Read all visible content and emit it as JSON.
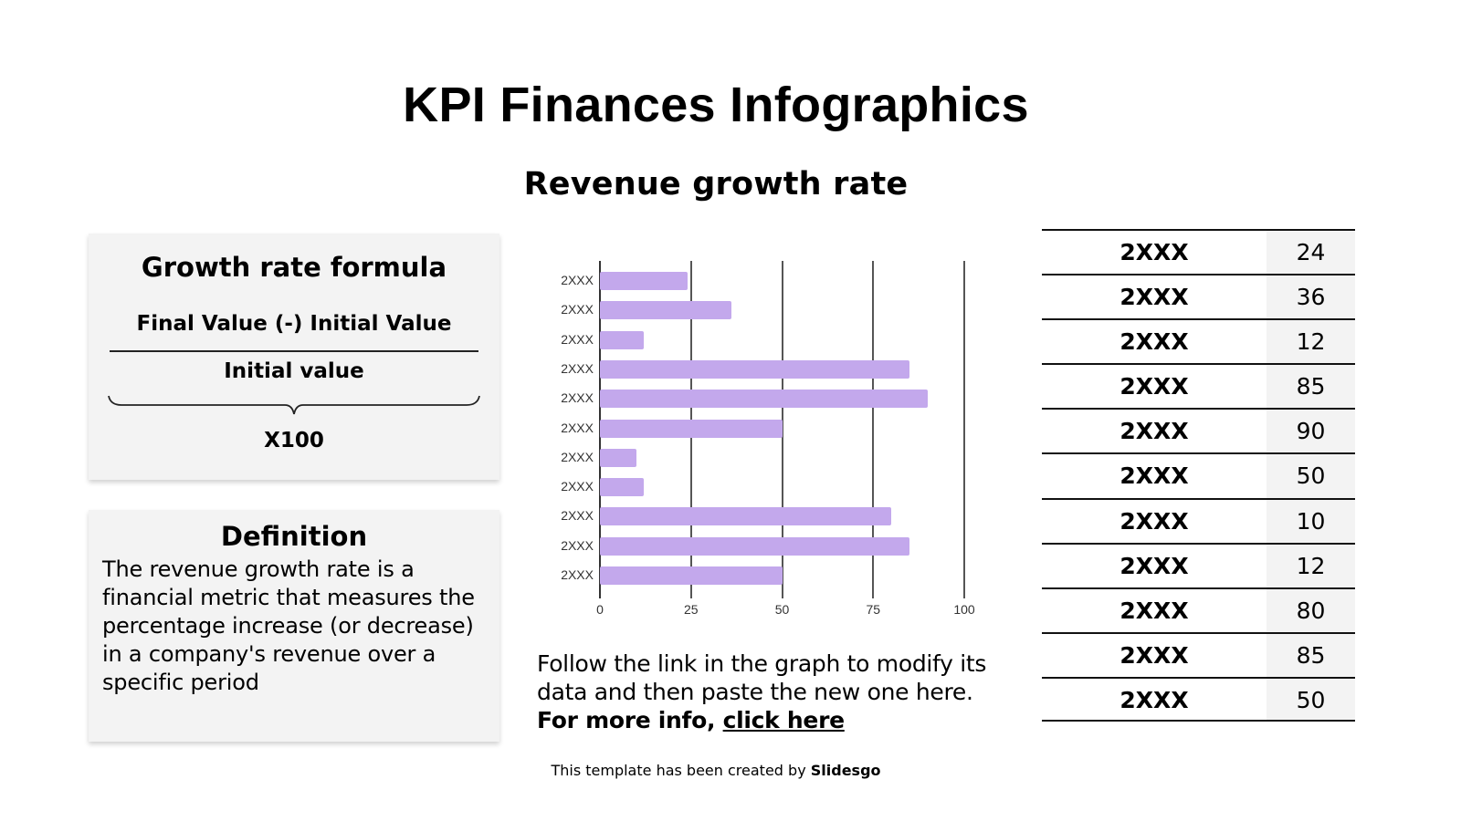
{
  "header": {
    "title": "KPI Finances Infographics",
    "subtitle": "Revenue growth rate"
  },
  "formula_card": {
    "heading": "Growth rate formula",
    "numerator": "Final Value (-) Initial Value",
    "denominator": "Initial value",
    "multiplier": "X100"
  },
  "definition_card": {
    "heading": "Definition",
    "text": "The revenue growth rate is a financial metric that measures the percentage increase (or decrease) in a company's revenue over a specific period"
  },
  "note": {
    "text": "Follow the link in the graph to modify its data and then paste the new one here. ",
    "bold": "For more info, ",
    "link": "click here"
  },
  "credit": {
    "text": "This template has been created by ",
    "brand": "Slidesgo"
  },
  "colors": {
    "bar": "#c3a8ec",
    "card_bg": "#f3f3f3",
    "value_col_bg": "#f3f3f3"
  },
  "table": {
    "rows": [
      {
        "label": "2XXX",
        "value": "24"
      },
      {
        "label": "2XXX",
        "value": "36"
      },
      {
        "label": "2XXX",
        "value": "12"
      },
      {
        "label": "2XXX",
        "value": "85"
      },
      {
        "label": "2XXX",
        "value": "90"
      },
      {
        "label": "2XXX",
        "value": "50"
      },
      {
        "label": "2XXX",
        "value": "10"
      },
      {
        "label": "2XXX",
        "value": "12"
      },
      {
        "label": "2XXX",
        "value": "80"
      },
      {
        "label": "2XXX",
        "value": "85"
      },
      {
        "label": "2XXX",
        "value": "50"
      }
    ]
  },
  "chart_data": {
    "type": "bar",
    "orientation": "horizontal",
    "title": "Revenue growth rate",
    "xlabel": "",
    "ylabel": "",
    "categories": [
      "2XXX",
      "2XXX",
      "2XXX",
      "2XXX",
      "2XXX",
      "2XXX",
      "2XXX",
      "2XXX",
      "2XXX",
      "2XXX",
      "2XXX"
    ],
    "values": [
      24,
      36,
      12,
      85,
      90,
      50,
      10,
      12,
      80,
      85,
      50
    ],
    "xlim": [
      0,
      100
    ],
    "xticks": [
      "0",
      "25",
      "50",
      "75",
      "100"
    ],
    "grid": true,
    "legend": null,
    "color": "#c3a8ec"
  }
}
